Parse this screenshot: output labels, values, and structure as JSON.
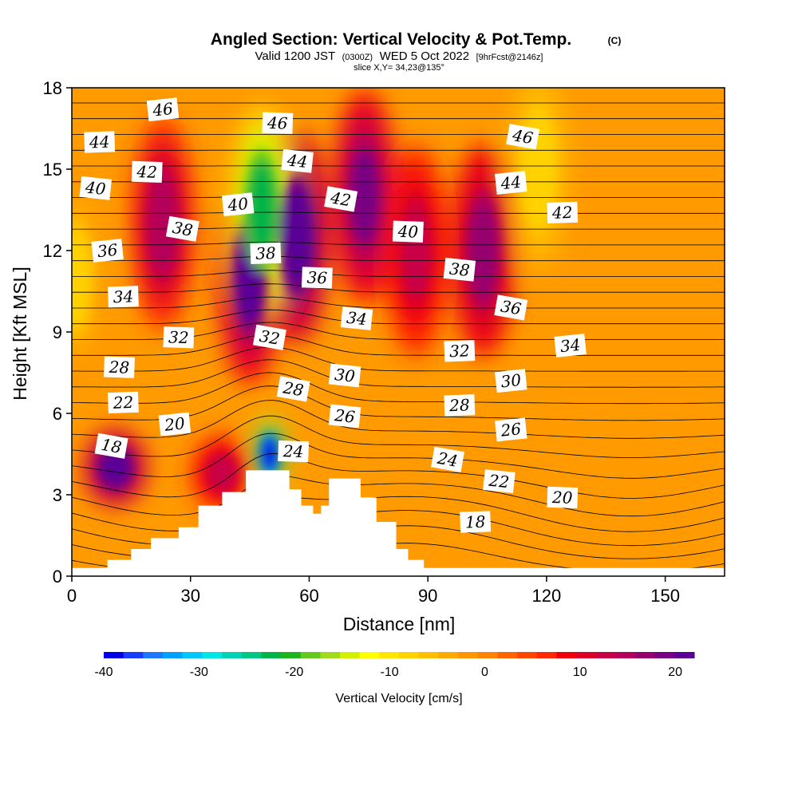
{
  "chart_data": {
    "type": "heatmap",
    "title": "Angled Section: Vertical Velocity & Pot.Temp.",
    "title_mark": "(C)",
    "subtitle_parts": [
      "Valid 1200 JST",
      "(0300Z)",
      "WED 5 Oct 2022",
      "[9hrFcst@2146z]"
    ],
    "slice_label": "slice X,Y= 34,23@135°",
    "xlabel": "Distance [nm]",
    "ylabel": "Height [Kft MSL]",
    "xlim": [
      0,
      165
    ],
    "ylim": [
      0,
      18
    ],
    "x_ticks": [
      0,
      30,
      60,
      90,
      120,
      150
    ],
    "y_ticks": [
      0,
      3,
      6,
      9,
      12,
      15,
      18
    ],
    "colorbar": {
      "label": "Vertical Velocity [cm/s]",
      "range": [
        -40,
        22
      ],
      "ticks": [
        -40,
        -30,
        -20,
        -10,
        0,
        10,
        20
      ],
      "colors": [
        "#0000e6",
        "#1a3cff",
        "#1e78ff",
        "#00a0ff",
        "#00c8ff",
        "#00e6e6",
        "#00d2b4",
        "#00c882",
        "#00b446",
        "#1eb41e",
        "#64c81e",
        "#a0dc1e",
        "#d2f000",
        "#ffff00",
        "#ffe600",
        "#ffd200",
        "#ffbe00",
        "#ffaa00",
        "#ff9600",
        "#ff8200",
        "#ff6400",
        "#ff4600",
        "#ff2800",
        "#f0000a",
        "#dc0028",
        "#c80046",
        "#b4005a",
        "#96006e",
        "#780082",
        "#5a0096"
      ]
    },
    "contour_variable": "Potential temperature (C)",
    "contour_labels": [
      {
        "value": 46,
        "x": 23,
        "y": 17.2
      },
      {
        "value": 46,
        "x": 52,
        "y": 16.7
      },
      {
        "value": 46,
        "x": 114,
        "y": 16.2
      },
      {
        "value": 44,
        "x": 7,
        "y": 16.0
      },
      {
        "value": 44,
        "x": 57,
        "y": 15.3
      },
      {
        "value": 44,
        "x": 111,
        "y": 14.5
      },
      {
        "value": 42,
        "x": 19,
        "y": 14.9
      },
      {
        "value": 42,
        "x": 68,
        "y": 13.9
      },
      {
        "value": 42,
        "x": 124,
        "y": 13.4
      },
      {
        "value": 40,
        "x": 6,
        "y": 14.3
      },
      {
        "value": 40,
        "x": 42,
        "y": 13.7
      },
      {
        "value": 40,
        "x": 85,
        "y": 12.7
      },
      {
        "value": 38,
        "x": 28,
        "y": 12.8
      },
      {
        "value": 38,
        "x": 49,
        "y": 11.9
      },
      {
        "value": 38,
        "x": 98,
        "y": 11.3
      },
      {
        "value": 36,
        "x": 9,
        "y": 12.0
      },
      {
        "value": 36,
        "x": 62,
        "y": 11.0
      },
      {
        "value": 36,
        "x": 111,
        "y": 9.9
      },
      {
        "value": 34,
        "x": 13,
        "y": 10.3
      },
      {
        "value": 34,
        "x": 72,
        "y": 9.5
      },
      {
        "value": 34,
        "x": 126,
        "y": 8.5
      },
      {
        "value": 32,
        "x": 27,
        "y": 8.8
      },
      {
        "value": 32,
        "x": 50,
        "y": 8.8
      },
      {
        "value": 32,
        "x": 98,
        "y": 8.3
      },
      {
        "value": 30,
        "x": 69,
        "y": 7.4
      },
      {
        "value": 30,
        "x": 111,
        "y": 7.2
      },
      {
        "value": 28,
        "x": 12,
        "y": 7.7
      },
      {
        "value": 28,
        "x": 56,
        "y": 6.9
      },
      {
        "value": 28,
        "x": 98,
        "y": 6.3
      },
      {
        "value": 26,
        "x": 69,
        "y": 5.9
      },
      {
        "value": 26,
        "x": 111,
        "y": 5.4
      },
      {
        "value": 24,
        "x": 56,
        "y": 4.6
      },
      {
        "value": 24,
        "x": 95,
        "y": 4.3
      },
      {
        "value": 22,
        "x": 13,
        "y": 6.4
      },
      {
        "value": 22,
        "x": 108,
        "y": 3.5
      },
      {
        "value": 20,
        "x": 26,
        "y": 5.6
      },
      {
        "value": 20,
        "x": 124,
        "y": 2.9
      },
      {
        "value": 18,
        "x": 10,
        "y": 4.8
      },
      {
        "value": 18,
        "x": 102,
        "y": 2.0
      }
    ],
    "vertical_velocity_features_cm_s": [
      {
        "kind": "updraft",
        "x": 11,
        "y": 4.0,
        "peak": 22
      },
      {
        "kind": "updraft",
        "x": 23,
        "y": 13.0,
        "peak": 14
      },
      {
        "kind": "updraft",
        "x": 45,
        "y": 11.0,
        "peak": 20
      },
      {
        "kind": "updraft",
        "x": 57,
        "y": 12.5,
        "peak": 22
      },
      {
        "kind": "updraft",
        "x": 74,
        "y": 14.0,
        "peak": 18
      },
      {
        "kind": "updraft",
        "x": 87,
        "y": 12.0,
        "peak": 13
      },
      {
        "kind": "updraft",
        "x": 104,
        "y": 12.0,
        "peak": 16
      },
      {
        "kind": "updraft",
        "x": 38,
        "y": 3.8,
        "peak": 12
      },
      {
        "kind": "downdraft",
        "x": 48,
        "y": 13.5,
        "peak": -22
      },
      {
        "kind": "downdraft",
        "x": 50,
        "y": 4.5,
        "peak": -38
      },
      {
        "kind": "downdraft",
        "x": 118,
        "y": 15.0,
        "peak": -9
      },
      {
        "kind": "downdraft",
        "x": 1,
        "y": 11.0,
        "peak": -8
      }
    ],
    "terrain_kft": [
      {
        "x": 0,
        "h": 0.3
      },
      {
        "x": 9,
        "h": 0.6
      },
      {
        "x": 15,
        "h": 1.0
      },
      {
        "x": 20,
        "h": 1.4
      },
      {
        "x": 27,
        "h": 1.8
      },
      {
        "x": 32,
        "h": 2.6
      },
      {
        "x": 38,
        "h": 3.1
      },
      {
        "x": 44,
        "h": 3.9
      },
      {
        "x": 52,
        "h": 3.9
      },
      {
        "x": 55,
        "h": 3.2
      },
      {
        "x": 58,
        "h": 2.6
      },
      {
        "x": 61,
        "h": 2.3
      },
      {
        "x": 63,
        "h": 2.6
      },
      {
        "x": 65,
        "h": 3.6
      },
      {
        "x": 70,
        "h": 3.6
      },
      {
        "x": 73,
        "h": 2.9
      },
      {
        "x": 77,
        "h": 2.0
      },
      {
        "x": 82,
        "h": 1.0
      },
      {
        "x": 85,
        "h": 0.6
      },
      {
        "x": 89,
        "h": 0.3
      },
      {
        "x": 165,
        "h": 0.3
      }
    ]
  }
}
